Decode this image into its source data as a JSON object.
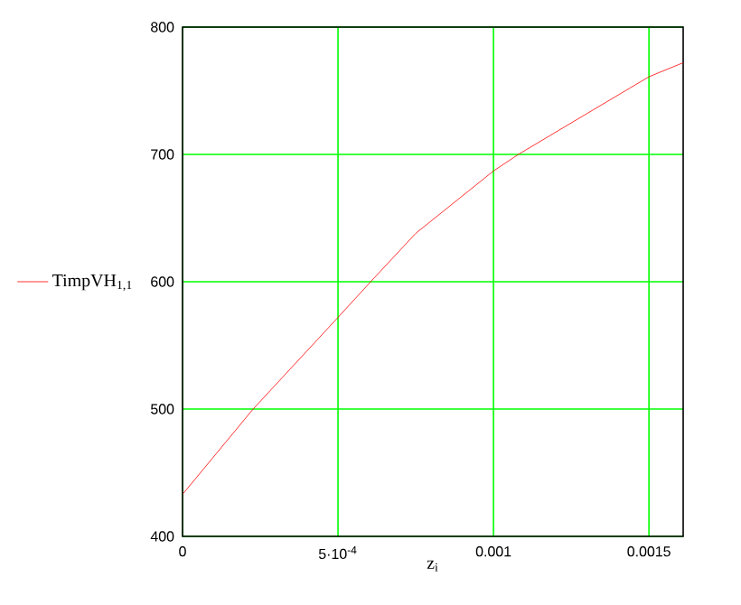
{
  "chart_data": {
    "type": "line",
    "xlabel": "z$_{i}$",
    "legend": "left",
    "x": [
      0,
      0.000227,
      0.0005,
      0.000605,
      0.00075,
      0.001,
      0.00108,
      0.0013,
      0.0015,
      0.00161
    ],
    "series": [
      {
        "name": "TimpVH$_{1,1}$",
        "color": "#ff0000",
        "values": [
          433,
          500,
          572,
          600,
          638,
          687,
          700,
          732,
          761,
          772
        ]
      }
    ],
    "xlim": [
      0,
      0.00161
    ],
    "ylim": [
      400,
      800
    ],
    "xticks": [
      0,
      {
        "value": 0.0005,
        "label": "5·10$^{-4}$"
      },
      0.001,
      0.0015
    ],
    "yticks": [
      400,
      500,
      600,
      700,
      800
    ],
    "grid": true,
    "line_style": "solid"
  }
}
